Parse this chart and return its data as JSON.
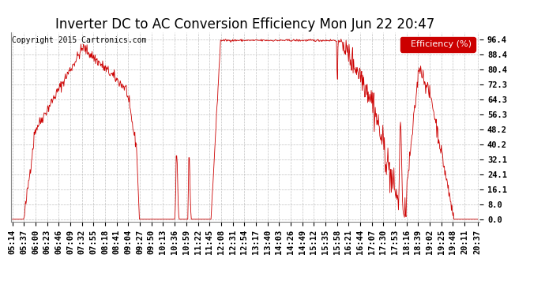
{
  "title": "Inverter DC to AC Conversion Efficiency Mon Jun 22 20:47",
  "copyright": "Copyright 2015 Cartronics.com",
  "legend_label": "Efficiency (%)",
  "legend_bg": "#cc0000",
  "legend_text_color": "#ffffff",
  "line_color": "#cc0000",
  "bg_color": "#ffffff",
  "grid_color": "#bbbbbb",
  "yticks": [
    0.0,
    8.0,
    16.1,
    24.1,
    32.1,
    40.2,
    48.2,
    56.3,
    64.3,
    72.3,
    80.4,
    88.4,
    96.4
  ],
  "ylim": [
    -1.5,
    100
  ],
  "xtick_labels": [
    "05:14",
    "05:37",
    "06:00",
    "06:23",
    "06:46",
    "07:09",
    "07:32",
    "07:55",
    "08:18",
    "08:41",
    "09:04",
    "09:27",
    "09:50",
    "10:13",
    "10:36",
    "10:59",
    "11:22",
    "11:45",
    "12:08",
    "12:31",
    "12:54",
    "13:17",
    "13:40",
    "14:03",
    "14:26",
    "14:49",
    "15:12",
    "15:35",
    "15:58",
    "16:21",
    "16:44",
    "17:07",
    "17:30",
    "17:53",
    "18:16",
    "18:39",
    "19:02",
    "19:25",
    "19:48",
    "20:11",
    "20:37"
  ],
  "title_fontsize": 12,
  "axis_fontsize": 7.5,
  "copyright_fontsize": 7
}
